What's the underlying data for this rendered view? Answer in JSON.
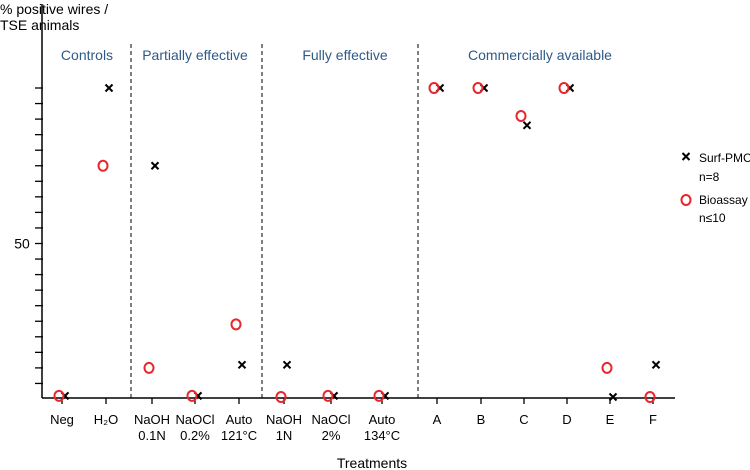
{
  "chart_data": {
    "type": "scatter",
    "ylabel_lines": [
      "% positive wires /",
      "TSE animals"
    ],
    "xlabel": "Treatments",
    "y_tick_label": "50",
    "y_tick_label_value": 50,
    "y_ticks": [
      5,
      10,
      15,
      20,
      25,
      30,
      35,
      40,
      45,
      50,
      55,
      60,
      65,
      70,
      75,
      80,
      85,
      90,
      95,
      100
    ],
    "ylim": [
      0,
      100
    ],
    "categories": [
      {
        "line1": "Neg",
        "line2": ""
      },
      {
        "line1": "H₂O",
        "line2": ""
      },
      {
        "line1": "NaOH",
        "line2": "0.1N"
      },
      {
        "line1": "NaOCl",
        "line2": "0.2%"
      },
      {
        "line1": "Auto",
        "line2": "121°C"
      },
      {
        "line1": "NaOH",
        "line2": "1N"
      },
      {
        "line1": "NaOCl",
        "line2": "2%"
      },
      {
        "line1": "Auto",
        "line2": "134°C"
      },
      {
        "line1": "A",
        "line2": ""
      },
      {
        "line1": "B",
        "line2": ""
      },
      {
        "line1": "C",
        "line2": ""
      },
      {
        "line1": "D",
        "line2": ""
      },
      {
        "line1": "E",
        "line2": ""
      },
      {
        "line1": "F",
        "line2": ""
      }
    ],
    "groups": [
      {
        "label": "Controls",
        "start": 0,
        "end": 1
      },
      {
        "label": "Partially effective",
        "start": 2,
        "end": 4
      },
      {
        "label": "Fully effective",
        "start": 5,
        "end": 7
      },
      {
        "label": "Commercially available",
        "start": 8,
        "end": 13
      }
    ],
    "series": [
      {
        "name": "Surf-PMCA",
        "n_label": "n=8",
        "marker": "x",
        "color": "#000000",
        "points": [
          {
            "cat": 0,
            "y": 1
          },
          {
            "cat": 1,
            "y": 100
          },
          {
            "cat": 2,
            "y": 75
          },
          {
            "cat": 3,
            "y": 1
          },
          {
            "cat": 4,
            "y": 11
          },
          {
            "cat": 5,
            "y": 11
          },
          {
            "cat": 6,
            "y": 1
          },
          {
            "cat": 7,
            "y": 1
          },
          {
            "cat": 8,
            "y": 100
          },
          {
            "cat": 9,
            "y": 100
          },
          {
            "cat": 10,
            "y": 88
          },
          {
            "cat": 11,
            "y": 100
          },
          {
            "cat": 12,
            "y": 0
          },
          {
            "cat": 13,
            "y": 11
          }
        ]
      },
      {
        "name": "Bioassay",
        "n_label": "n≤10",
        "marker": "o",
        "color": "#e8262c",
        "points": [
          {
            "cat": 0,
            "y": 1
          },
          {
            "cat": 1,
            "y": 75
          },
          {
            "cat": 2,
            "y": 10
          },
          {
            "cat": 3,
            "y": 1
          },
          {
            "cat": 4,
            "y": 24
          },
          {
            "cat": 5,
            "y": 0
          },
          {
            "cat": 6,
            "y": 1
          },
          {
            "cat": 7,
            "y": 1
          },
          {
            "cat": 8,
            "y": 100
          },
          {
            "cat": 9,
            "y": 100
          },
          {
            "cat": 10,
            "y": 91
          },
          {
            "cat": 11,
            "y": 100
          },
          {
            "cat": 12,
            "y": 10
          },
          {
            "cat": 13,
            "y": 0
          }
        ]
      }
    ],
    "colors": {
      "group_label": "#2e5a88",
      "axis": "#000000"
    }
  }
}
